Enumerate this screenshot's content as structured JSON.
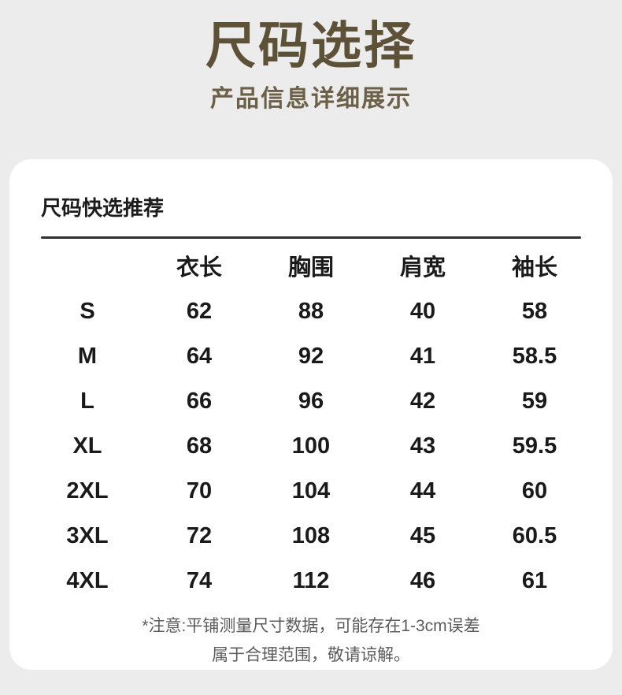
{
  "page": {
    "title": "尺码选择",
    "subtitle": "产品信息详细展示"
  },
  "card": {
    "heading": "尺码快选推荐",
    "note_line1": "*注意:平铺测量尺寸数据，可能存在1-3cm误差",
    "note_line2": "属于合理范围，敬请谅解。"
  },
  "chart_data": {
    "type": "table",
    "title": "尺码快选推荐",
    "columns": [
      "",
      "衣长",
      "胸围",
      "肩宽",
      "袖长"
    ],
    "rows": [
      [
        "S",
        "62",
        "88",
        "40",
        "58"
      ],
      [
        "M",
        "64",
        "92",
        "41",
        "58.5"
      ],
      [
        "L",
        "66",
        "96",
        "42",
        "59"
      ],
      [
        "XL",
        "68",
        "100",
        "43",
        "59.5"
      ],
      [
        "2XL",
        "70",
        "104",
        "44",
        "60"
      ],
      [
        "3XL",
        "72",
        "108",
        "45",
        "60.5"
      ],
      [
        "4XL",
        "74",
        "112",
        "46",
        "61"
      ]
    ],
    "units_note": "平铺测量尺寸数据，可能存在1-3cm误差，属于合理范围"
  },
  "colors": {
    "background": "#ececec",
    "card": "#ffffff",
    "title_text": "#5d5137",
    "subtitle_text": "#6c6048",
    "table_text": "#1a1a1a",
    "divider": "#2e2e2e",
    "note_text": "#5c5c5c"
  }
}
